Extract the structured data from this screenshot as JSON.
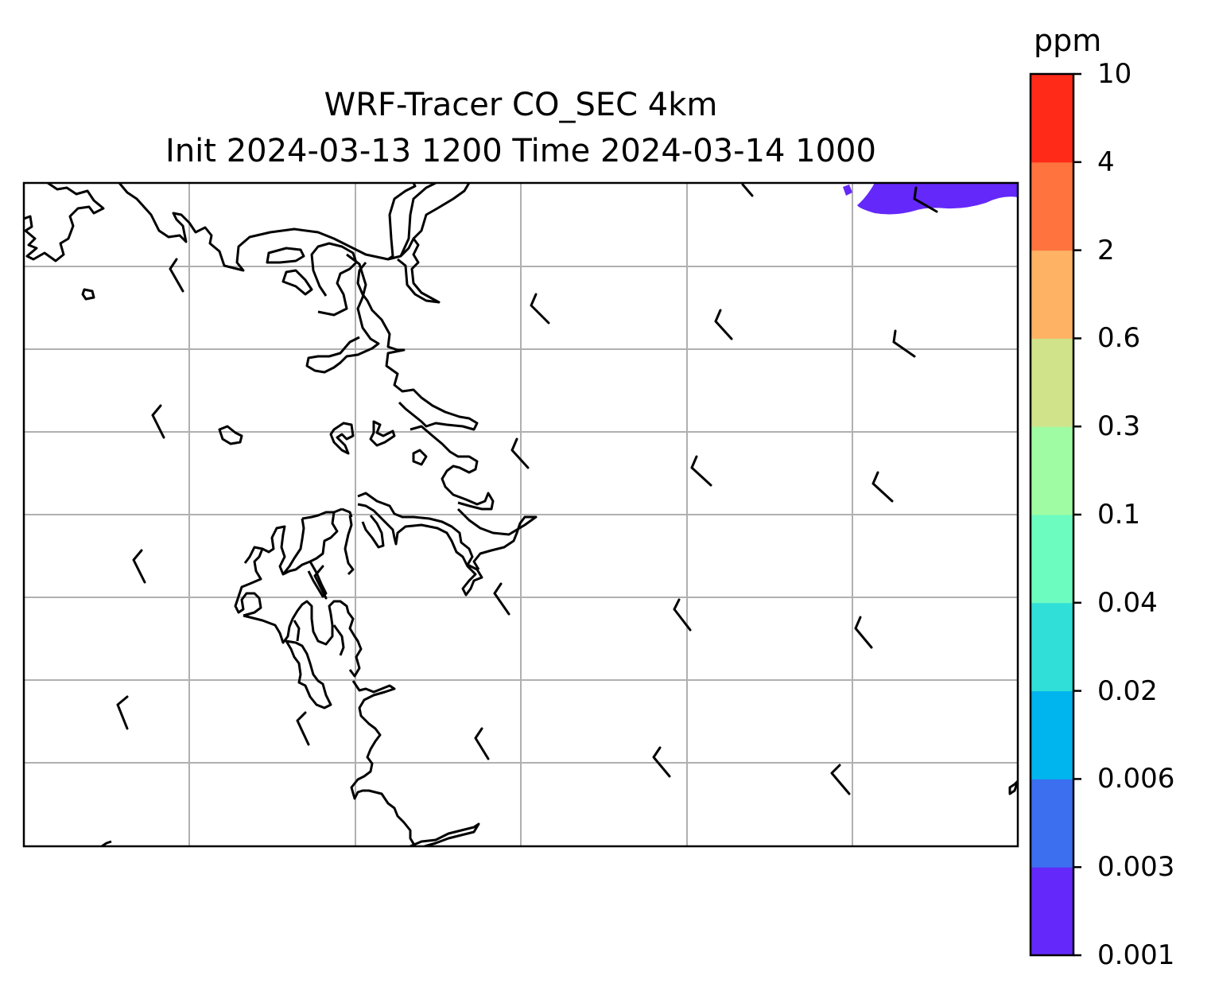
{
  "title": {
    "line1": "WRF-Tracer CO_SEC 4km",
    "line2": "Init 2024-03-13 1200 Time 2024-03-14 1000"
  },
  "colorbar": {
    "unit": "ppm",
    "levels": [
      "0.001",
      "0.003",
      "0.006",
      "0.02",
      "0.04",
      "0.1",
      "0.3",
      "0.6",
      "2",
      "4",
      "10"
    ],
    "colors": [
      "#6428fa",
      "#3b6ff0",
      "#00b4ee",
      "#30e0d8",
      "#6dfcc0",
      "#9ffca2",
      "#d0e38a",
      "#fdb264",
      "#fe733e",
      "#ff2b18"
    ]
  },
  "map": {
    "gridlines": true,
    "plume_color": "#6428fa",
    "plume_level": "0.001",
    "wind_barbs": true
  }
}
